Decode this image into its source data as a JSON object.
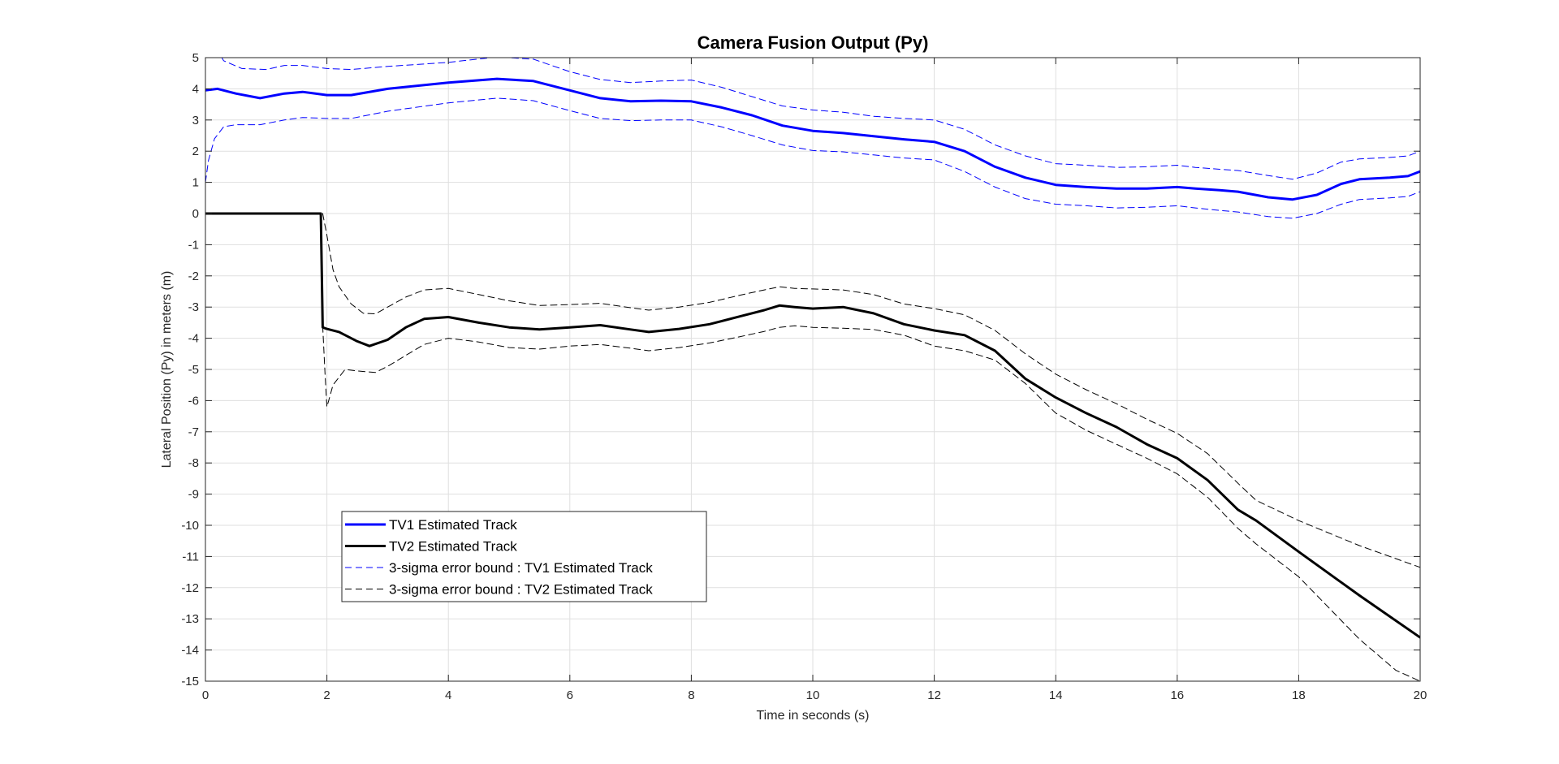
{
  "chart_data": {
    "type": "line",
    "title": "Camera Fusion Output (Py)",
    "xlabel": "Time in seconds (s)",
    "ylabel": "Lateral Position (Py) in meters (m)",
    "xlim": [
      0,
      20
    ],
    "ylim": [
      -15,
      5
    ],
    "xticks": [
      0,
      2,
      4,
      6,
      8,
      10,
      12,
      14,
      16,
      18,
      20
    ],
    "yticks": [
      5,
      4,
      3,
      2,
      1,
      0,
      -1,
      -2,
      -3,
      -4,
      -5,
      -6,
      -7,
      -8,
      -9,
      -10,
      -11,
      -12,
      -13,
      -14,
      -15
    ],
    "grid": true,
    "legend_position": "bottom-left",
    "series": [
      {
        "name": "TV1 Estimated Track",
        "color": "#0000ff",
        "style": "solid",
        "x": [
          0,
          0.2,
          0.5,
          0.9,
          1.3,
          1.6,
          2.0,
          2.4,
          3.0,
          4.0,
          4.8,
          5.4,
          6.0,
          6.5,
          7.0,
          7.5,
          8.0,
          8.5,
          9.0,
          9.5,
          10.0,
          10.5,
          11.0,
          11.5,
          12.0,
          12.5,
          13.0,
          13.5,
          14.0,
          14.5,
          15.0,
          15.5,
          16.0,
          16.3,
          16.7,
          17.0,
          17.5,
          17.9,
          18.3,
          18.7,
          19.0,
          19.5,
          19.8,
          20.0
        ],
        "y": [
          3.95,
          4.0,
          3.85,
          3.7,
          3.85,
          3.9,
          3.8,
          3.8,
          4.0,
          4.2,
          4.32,
          4.25,
          3.95,
          3.7,
          3.6,
          3.62,
          3.6,
          3.4,
          3.15,
          2.82,
          2.65,
          2.58,
          2.48,
          2.38,
          2.3,
          2.0,
          1.5,
          1.15,
          0.92,
          0.85,
          0.8,
          0.8,
          0.85,
          0.8,
          0.75,
          0.7,
          0.52,
          0.45,
          0.6,
          0.95,
          1.1,
          1.15,
          1.2,
          1.35
        ]
      },
      {
        "name": "TV2 Estimated Track",
        "color": "#000000",
        "style": "solid",
        "x": [
          0,
          1.0,
          1.9,
          1.93,
          2.0,
          2.2,
          2.5,
          2.7,
          3.0,
          3.3,
          3.6,
          4.0,
          4.5,
          5.0,
          5.5,
          6.0,
          6.5,
          7.0,
          7.3,
          7.8,
          8.3,
          8.8,
          9.2,
          9.45,
          9.7,
          10.0,
          10.5,
          11.0,
          11.5,
          12.0,
          12.5,
          13.0,
          13.5,
          14.0,
          14.5,
          15.0,
          15.5,
          16.0,
          16.5,
          17.0,
          17.3,
          18.0,
          19.0,
          20.0
        ],
        "y": [
          0,
          0,
          0,
          -3.65,
          -3.7,
          -3.8,
          -4.1,
          -4.25,
          -4.05,
          -3.65,
          -3.38,
          -3.32,
          -3.5,
          -3.65,
          -3.72,
          -3.65,
          -3.58,
          -3.72,
          -3.8,
          -3.7,
          -3.55,
          -3.3,
          -3.1,
          -2.95,
          -3.0,
          -3.05,
          -3.0,
          -3.2,
          -3.55,
          -3.75,
          -3.9,
          -4.4,
          -5.3,
          -5.9,
          -6.4,
          -6.85,
          -7.4,
          -7.85,
          -8.55,
          -9.5,
          -9.85,
          -10.85,
          -12.25,
          -13.6
        ]
      },
      {
        "name": "3-sigma error bound : TV1 Estimated Track",
        "color": "#0000ff",
        "style": "dashed",
        "x": [
          0.0,
          0.3,
          0.6,
          1.0,
          1.3,
          1.6,
          2.0,
          2.4,
          3.0,
          4.0,
          4.8,
          5.4,
          6.0,
          6.5,
          7.0,
          7.5,
          8.0,
          8.5,
          9.0,
          9.5,
          10.0,
          10.5,
          11.0,
          11.5,
          12.0,
          12.5,
          13.0,
          13.5,
          14.0,
          14.5,
          15.0,
          15.5,
          16.0,
          16.3,
          16.7,
          17.0,
          17.5,
          17.9,
          18.3,
          18.7,
          19.0,
          19.5,
          19.8,
          20.0
        ],
        "y": [
          5.9,
          4.9,
          4.65,
          4.62,
          4.75,
          4.75,
          4.65,
          4.62,
          4.72,
          4.85,
          5.02,
          4.95,
          4.55,
          4.3,
          4.2,
          4.25,
          4.28,
          4.05,
          3.75,
          3.45,
          3.32,
          3.25,
          3.12,
          3.05,
          3.0,
          2.7,
          2.2,
          1.85,
          1.6,
          1.55,
          1.48,
          1.5,
          1.55,
          1.48,
          1.42,
          1.38,
          1.22,
          1.1,
          1.3,
          1.65,
          1.75,
          1.8,
          1.85,
          2.0
        ]
      },
      {
        "name": "3-sigma error bound : TV1 Estimated Track",
        "color": "#0000ff",
        "style": "dashed",
        "x": [
          0.0,
          0.05,
          0.15,
          0.3,
          0.5,
          0.9,
          1.3,
          1.6,
          2.0,
          2.4,
          3.0,
          4.0,
          4.8,
          5.4,
          6.0,
          6.5,
          7.0,
          7.5,
          8.0,
          8.5,
          9.0,
          9.5,
          10.0,
          10.5,
          11.0,
          11.5,
          12.0,
          12.5,
          13.0,
          13.5,
          14.0,
          14.5,
          15.0,
          15.5,
          16.0,
          16.3,
          16.7,
          17.0,
          17.5,
          17.9,
          18.3,
          18.7,
          19.0,
          19.5,
          19.8,
          20.0
        ],
        "y": [
          1.0,
          1.7,
          2.4,
          2.78,
          2.85,
          2.85,
          3.0,
          3.08,
          3.05,
          3.05,
          3.28,
          3.55,
          3.7,
          3.62,
          3.3,
          3.05,
          2.98,
          3.0,
          3.0,
          2.78,
          2.5,
          2.2,
          2.02,
          1.98,
          1.88,
          1.78,
          1.72,
          1.35,
          0.85,
          0.48,
          0.3,
          0.25,
          0.18,
          0.2,
          0.25,
          0.18,
          0.1,
          0.05,
          -0.1,
          -0.15,
          0.0,
          0.3,
          0.45,
          0.5,
          0.55,
          0.7
        ]
      },
      {
        "name": "3-sigma error bound : TV2 Estimated Track",
        "color": "#000000",
        "style": "dashed",
        "x": [
          1.93,
          2.0,
          2.1,
          2.2,
          2.4,
          2.6,
          2.8,
          3.0,
          3.3,
          3.6,
          4.0,
          4.5,
          5.0,
          5.5,
          6.0,
          6.5,
          7.0,
          7.3,
          7.8,
          8.3,
          8.8,
          9.2,
          9.45,
          9.7,
          10.0,
          10.5,
          11.0,
          11.5,
          12.0,
          12.5,
          13.0,
          13.5,
          14.0,
          14.5,
          15.0,
          15.5,
          16.0,
          16.5,
          17.0,
          17.3,
          18.0,
          19.0,
          20.0
        ],
        "y": [
          0.0,
          -0.7,
          -1.8,
          -2.35,
          -2.9,
          -3.2,
          -3.22,
          -3.0,
          -2.68,
          -2.45,
          -2.4,
          -2.6,
          -2.8,
          -2.95,
          -2.92,
          -2.88,
          -3.02,
          -3.1,
          -3.0,
          -2.85,
          -2.62,
          -2.45,
          -2.35,
          -2.4,
          -2.42,
          -2.45,
          -2.6,
          -2.9,
          -3.05,
          -3.25,
          -3.75,
          -4.5,
          -5.15,
          -5.65,
          -6.1,
          -6.6,
          -7.05,
          -7.7,
          -8.65,
          -9.2,
          -9.85,
          -10.65,
          -11.35
        ]
      },
      {
        "name": "3-sigma error bound : TV2 Estimated Track",
        "color": "#000000",
        "style": "dashed",
        "x": [
          1.93,
          1.97,
          2.0,
          2.03,
          2.1,
          2.3,
          2.5,
          2.8,
          3.0,
          3.3,
          3.6,
          4.0,
          4.5,
          5.0,
          5.5,
          6.0,
          6.5,
          7.0,
          7.3,
          7.8,
          8.3,
          8.8,
          9.2,
          9.45,
          9.7,
          10.0,
          10.5,
          11.0,
          11.5,
          12.0,
          12.5,
          13.0,
          13.5,
          14.0,
          14.5,
          15.0,
          15.5,
          16.0,
          16.5,
          17.0,
          17.3,
          18.0,
          19.0,
          19.6,
          20.0
        ],
        "y": [
          -3.6,
          -5.2,
          -6.2,
          -6.0,
          -5.5,
          -5.0,
          -5.05,
          -5.1,
          -4.9,
          -4.55,
          -4.2,
          -4.0,
          -4.12,
          -4.3,
          -4.35,
          -4.25,
          -4.2,
          -4.32,
          -4.4,
          -4.3,
          -4.15,
          -3.95,
          -3.78,
          -3.65,
          -3.6,
          -3.65,
          -3.68,
          -3.72,
          -3.9,
          -4.25,
          -4.4,
          -4.7,
          -5.45,
          -6.4,
          -6.95,
          -7.4,
          -7.85,
          -8.35,
          -9.1,
          -10.1,
          -10.6,
          -11.65,
          -13.65,
          -14.65,
          -15.0
        ]
      }
    ],
    "legend": [
      {
        "label": "TV1 Estimated Track",
        "color": "#0000ff",
        "style": "solid"
      },
      {
        "label": "TV2 Estimated Track",
        "color": "#000000",
        "style": "solid"
      },
      {
        "label": "3-sigma error bound : TV1 Estimated Track",
        "color": "#0000ff",
        "style": "dashed"
      },
      {
        "label": "3-sigma error bound : TV2 Estimated Track",
        "color": "#000000",
        "style": "dashed"
      }
    ]
  }
}
